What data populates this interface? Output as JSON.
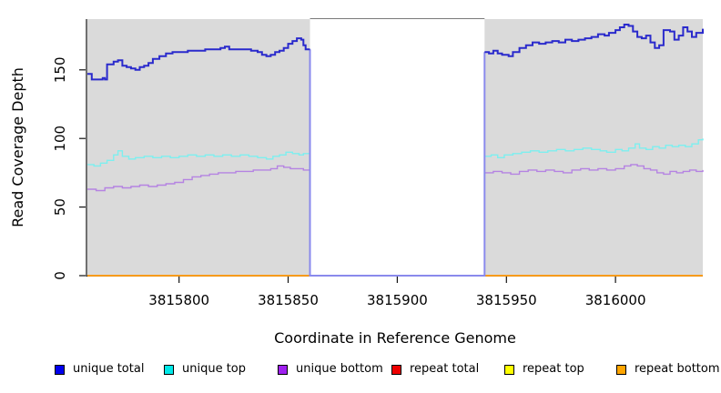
{
  "chart_data": {
    "type": "line",
    "title": "",
    "xlabel": "Coordinate in Reference Genome",
    "ylabel": "Read Coverage Depth",
    "xlim": [
      3815758,
      3816040
    ],
    "ylim": [
      0,
      187
    ],
    "x_ticks": [
      3815800,
      3815850,
      3815900,
      3815950,
      3816000
    ],
    "y_ticks": [
      0,
      50,
      100,
      150
    ],
    "grid": "off",
    "legend_position": "bottom",
    "background_panels": {
      "color": "#DADADA",
      "regions": [
        [
          3815758,
          3815860
        ],
        [
          3815940,
          3816040
        ]
      ]
    },
    "coverage_gap": {
      "start": 3815860,
      "end": 3815940
    },
    "axis_color": "#111111",
    "box_top_color": "#7A7A7A",
    "series": [
      {
        "name": "unique total",
        "z": 6,
        "legend_color": "#0000EE",
        "line_color": "#2A2ACC",
        "line_width": 2,
        "gap_color": "#8A8AEC",
        "gap_segment": [
          [
            3815860,
            165
          ],
          [
            3815860,
            0
          ],
          [
            3815940,
            0
          ],
          [
            3815940,
            163
          ]
        ],
        "segments": [
          [
            [
              3815758,
              147
            ],
            [
              3815760,
              143
            ],
            [
              3815763,
              143
            ],
            [
              3815765,
              144
            ],
            [
              3815766,
              143
            ],
            [
              3815767,
              154
            ],
            [
              3815770,
              156
            ],
            [
              3815772,
              157
            ],
            [
              3815774,
              153
            ],
            [
              3815776,
              152
            ],
            [
              3815778,
              151
            ],
            [
              3815780,
              150
            ],
            [
              3815782,
              152
            ],
            [
              3815784,
              153
            ],
            [
              3815786,
              155
            ],
            [
              3815788,
              158
            ],
            [
              3815791,
              160
            ],
            [
              3815794,
              162
            ],
            [
              3815797,
              163
            ],
            [
              3815801,
              163
            ],
            [
              3815804,
              164
            ],
            [
              3815808,
              164
            ],
            [
              3815812,
              165
            ],
            [
              3815816,
              165
            ],
            [
              3815819,
              166
            ],
            [
              3815821,
              167
            ],
            [
              3815823,
              165
            ],
            [
              3815827,
              165
            ],
            [
              3815830,
              165
            ],
            [
              3815833,
              164
            ],
            [
              3815836,
              163
            ],
            [
              3815838,
              161
            ],
            [
              3815840,
              160
            ],
            [
              3815842,
              161
            ],
            [
              3815844,
              163
            ],
            [
              3815846,
              164
            ],
            [
              3815848,
              166
            ],
            [
              3815850,
              169
            ],
            [
              3815852,
              171
            ],
            [
              3815854,
              173
            ],
            [
              3815856,
              172
            ],
            [
              3815857,
              168
            ],
            [
              3815858,
              165
            ],
            [
              3815860,
              165
            ]
          ],
          [
            [
              3815940,
              163
            ],
            [
              3815942,
              162
            ],
            [
              3815944,
              164
            ],
            [
              3815946,
              162
            ],
            [
              3815948,
              161
            ],
            [
              3815951,
              160
            ],
            [
              3815953,
              163
            ],
            [
              3815956,
              166
            ],
            [
              3815959,
              168
            ],
            [
              3815962,
              170
            ],
            [
              3815965,
              169
            ],
            [
              3815968,
              170
            ],
            [
              3815971,
              171
            ],
            [
              3815974,
              170
            ],
            [
              3815977,
              172
            ],
            [
              3815980,
              171
            ],
            [
              3815983,
              172
            ],
            [
              3815986,
              173
            ],
            [
              3815989,
              174
            ],
            [
              3815992,
              176
            ],
            [
              3815995,
              175
            ],
            [
              3815997,
              177
            ],
            [
              3816000,
              179
            ],
            [
              3816002,
              181
            ],
            [
              3816004,
              183
            ],
            [
              3816006,
              182
            ],
            [
              3816008,
              178
            ],
            [
              3816010,
              174
            ],
            [
              3816012,
              173
            ],
            [
              3816014,
              175
            ],
            [
              3816016,
              170
            ],
            [
              3816018,
              166
            ],
            [
              3816020,
              168
            ],
            [
              3816022,
              179
            ],
            [
              3816025,
              178
            ],
            [
              3816027,
              172
            ],
            [
              3816029,
              175
            ],
            [
              3816031,
              181
            ],
            [
              3816033,
              178
            ],
            [
              3816035,
              174
            ],
            [
              3816037,
              177
            ],
            [
              3816040,
              180
            ]
          ]
        ]
      },
      {
        "name": "unique top",
        "z": 5,
        "legend_color": "#00E8E8",
        "line_color": "#7DEFEF",
        "line_width": 1.4,
        "segments": [
          [
            [
              3815758,
              81
            ],
            [
              3815761,
              80
            ],
            [
              3815764,
              82
            ],
            [
              3815767,
              84
            ],
            [
              3815770,
              88
            ],
            [
              3815772,
              91
            ],
            [
              3815774,
              87
            ],
            [
              3815777,
              85
            ],
            [
              3815780,
              86
            ],
            [
              3815784,
              87
            ],
            [
              3815788,
              86
            ],
            [
              3815792,
              87
            ],
            [
              3815796,
              86
            ],
            [
              3815800,
              87
            ],
            [
              3815804,
              88
            ],
            [
              3815808,
              87
            ],
            [
              3815812,
              88
            ],
            [
              3815816,
              87
            ],
            [
              3815820,
              88
            ],
            [
              3815824,
              87
            ],
            [
              3815828,
              88
            ],
            [
              3815832,
              87
            ],
            [
              3815836,
              86
            ],
            [
              3815840,
              85
            ],
            [
              3815843,
              87
            ],
            [
              3815846,
              88
            ],
            [
              3815849,
              90
            ],
            [
              3815852,
              89
            ],
            [
              3815855,
              88
            ],
            [
              3815857,
              89
            ],
            [
              3815860,
              88
            ]
          ],
          [
            [
              3815940,
              87
            ],
            [
              3815943,
              88
            ],
            [
              3815946,
              86
            ],
            [
              3815949,
              88
            ],
            [
              3815953,
              89
            ],
            [
              3815957,
              90
            ],
            [
              3815961,
              91
            ],
            [
              3815965,
              90
            ],
            [
              3815969,
              91
            ],
            [
              3815973,
              92
            ],
            [
              3815977,
              91
            ],
            [
              3815981,
              92
            ],
            [
              3815985,
              93
            ],
            [
              3815989,
              92
            ],
            [
              3815993,
              91
            ],
            [
              3815996,
              90
            ],
            [
              3816000,
              92
            ],
            [
              3816003,
              91
            ],
            [
              3816006,
              93
            ],
            [
              3816009,
              96
            ],
            [
              3816011,
              93
            ],
            [
              3816014,
              92
            ],
            [
              3816017,
              94
            ],
            [
              3816020,
              93
            ],
            [
              3816023,
              95
            ],
            [
              3816026,
              94
            ],
            [
              3816029,
              95
            ],
            [
              3816032,
              94
            ],
            [
              3816035,
              96
            ],
            [
              3816038,
              99
            ],
            [
              3816040,
              100
            ]
          ]
        ]
      },
      {
        "name": "unique bottom",
        "z": 4,
        "legend_color": "#A020F0",
        "line_color": "#B583E2",
        "line_width": 1.4,
        "segments": [
          [
            [
              3815758,
              63
            ],
            [
              3815762,
              62
            ],
            [
              3815766,
              64
            ],
            [
              3815770,
              65
            ],
            [
              3815774,
              64
            ],
            [
              3815778,
              65
            ],
            [
              3815782,
              66
            ],
            [
              3815786,
              65
            ],
            [
              3815790,
              66
            ],
            [
              3815794,
              67
            ],
            [
              3815798,
              68
            ],
            [
              3815802,
              70
            ],
            [
              3815806,
              72
            ],
            [
              3815810,
              73
            ],
            [
              3815814,
              74
            ],
            [
              3815818,
              75
            ],
            [
              3815822,
              75
            ],
            [
              3815826,
              76
            ],
            [
              3815830,
              76
            ],
            [
              3815834,
              77
            ],
            [
              3815838,
              77
            ],
            [
              3815842,
              78
            ],
            [
              3815845,
              80
            ],
            [
              3815848,
              79
            ],
            [
              3815851,
              78
            ],
            [
              3815854,
              78
            ],
            [
              3815857,
              77
            ],
            [
              3815860,
              77
            ]
          ],
          [
            [
              3815940,
              75
            ],
            [
              3815944,
              76
            ],
            [
              3815948,
              75
            ],
            [
              3815952,
              74
            ],
            [
              3815956,
              76
            ],
            [
              3815960,
              77
            ],
            [
              3815964,
              76
            ],
            [
              3815968,
              77
            ],
            [
              3815972,
              76
            ],
            [
              3815976,
              75
            ],
            [
              3815980,
              77
            ],
            [
              3815984,
              78
            ],
            [
              3815988,
              77
            ],
            [
              3815992,
              78
            ],
            [
              3815996,
              77
            ],
            [
              3816000,
              78
            ],
            [
              3816004,
              80
            ],
            [
              3816007,
              81
            ],
            [
              3816010,
              80
            ],
            [
              3816013,
              78
            ],
            [
              3816016,
              77
            ],
            [
              3816019,
              75
            ],
            [
              3816022,
              74
            ],
            [
              3816025,
              76
            ],
            [
              3816028,
              75
            ],
            [
              3816031,
              76
            ],
            [
              3816034,
              77
            ],
            [
              3816037,
              76
            ],
            [
              3816040,
              77
            ]
          ]
        ]
      },
      {
        "name": "repeat total",
        "z": 1,
        "legend_color": "#EE0000",
        "line_color": "#EE0000",
        "line_width": 1.2,
        "segments": [
          [
            [
              3815758,
              0
            ],
            [
              3816040,
              0
            ]
          ]
        ]
      },
      {
        "name": "repeat top",
        "z": 2,
        "legend_color": "#FFFF00",
        "line_color": "#FFFF00",
        "line_width": 1.2,
        "segments": [
          [
            [
              3815758,
              0
            ],
            [
              3816040,
              0
            ]
          ]
        ]
      },
      {
        "name": "repeat bottom",
        "z": 3,
        "legend_color": "#FFA500",
        "line_color": "#FF9C14",
        "line_width": 1.7,
        "segments": [
          [
            [
              3815758,
              0
            ],
            [
              3816040,
              0
            ]
          ]
        ]
      }
    ]
  }
}
